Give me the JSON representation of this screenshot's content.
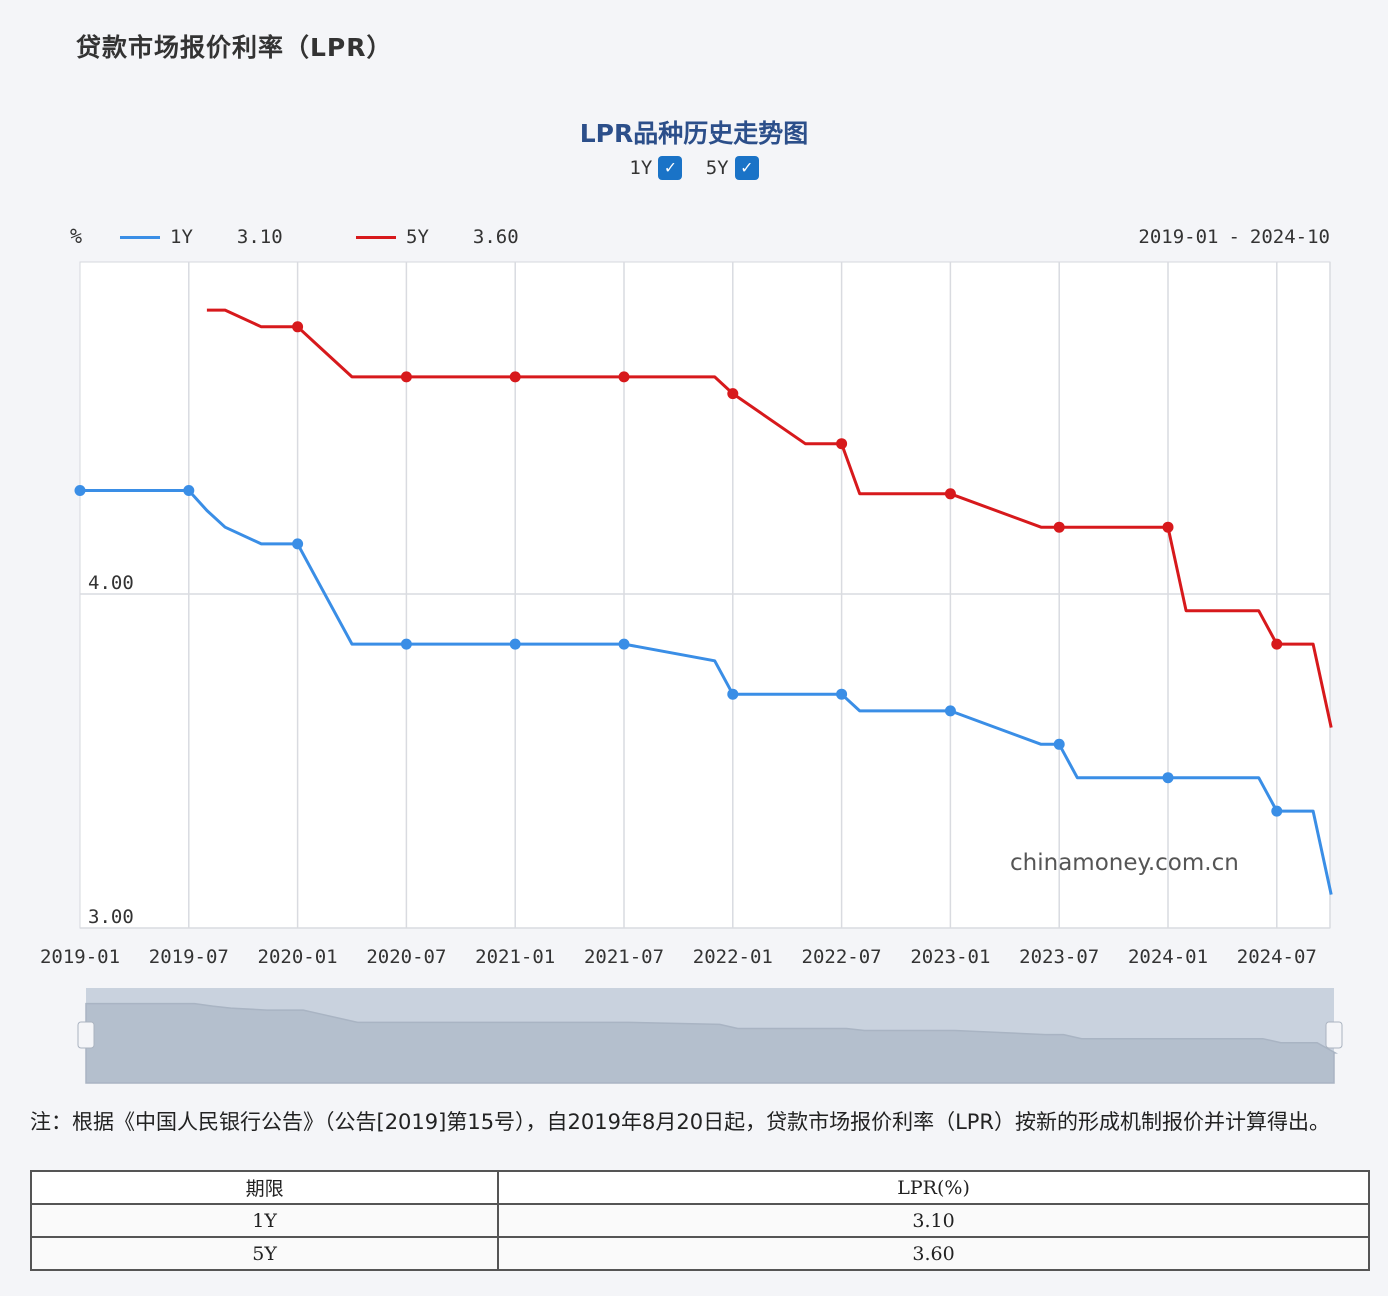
{
  "page_title": "贷款市场报价利率（LPR）",
  "chart_title": "LPR品种历史走势图",
  "toggles": [
    {
      "label": "1Y",
      "checked": true
    },
    {
      "label": "5Y",
      "checked": true
    }
  ],
  "checkmark": "✓",
  "legend": [
    {
      "name": "1Y",
      "value": "3.10",
      "color": "#3a8ee6"
    },
    {
      "name": "5Y",
      "value": "3.60",
      "color": "#d7191c"
    }
  ],
  "unit_label": "%",
  "date_range": {
    "start": "2019-01",
    "sep": "-",
    "end": "2024-10"
  },
  "watermark": "chinamoney.com.cn",
  "chart_data": {
    "type": "line",
    "x_ticks": [
      "2019-01",
      "2019-07",
      "2020-01",
      "2020-07",
      "2021-01",
      "2021-07",
      "2022-01",
      "2022-07",
      "2023-01",
      "2023-07",
      "2024-01",
      "2024-07"
    ],
    "y_ticks": [
      "4.00",
      "3.00"
    ],
    "ylim": [
      3.0,
      5.0
    ],
    "grid": true,
    "series": [
      {
        "name": "1Y",
        "color": "#3a8ee6",
        "points": [
          [
            "2019-01",
            4.31
          ],
          [
            "2019-07",
            4.31
          ],
          [
            "2019-08",
            4.25
          ],
          [
            "2019-09",
            4.2
          ],
          [
            "2019-11",
            4.15
          ],
          [
            "2020-01",
            4.15
          ],
          [
            "2020-02",
            4.05
          ],
          [
            "2020-04",
            3.85
          ],
          [
            "2020-07",
            3.85
          ],
          [
            "2021-01",
            3.85
          ],
          [
            "2021-07",
            3.85
          ],
          [
            "2021-12",
            3.8
          ],
          [
            "2022-01",
            3.7
          ],
          [
            "2022-07",
            3.7
          ],
          [
            "2022-08",
            3.65
          ],
          [
            "2023-01",
            3.65
          ],
          [
            "2023-06",
            3.55
          ],
          [
            "2023-07",
            3.55
          ],
          [
            "2023-08",
            3.45
          ],
          [
            "2024-01",
            3.45
          ],
          [
            "2024-06",
            3.45
          ],
          [
            "2024-07",
            3.35
          ],
          [
            "2024-09",
            3.35
          ],
          [
            "2024-10",
            3.1
          ]
        ],
        "markers": [
          "2019-01",
          "2019-07",
          "2020-01",
          "2020-07",
          "2021-01",
          "2021-07",
          "2022-01",
          "2022-07",
          "2023-01",
          "2023-07",
          "2024-01",
          "2024-07"
        ]
      },
      {
        "name": "5Y",
        "color": "#d7191c",
        "points": [
          [
            "2019-08",
            4.85
          ],
          [
            "2019-09",
            4.85
          ],
          [
            "2019-11",
            4.8
          ],
          [
            "2020-01",
            4.8
          ],
          [
            "2020-02",
            4.75
          ],
          [
            "2020-04",
            4.65
          ],
          [
            "2020-07",
            4.65
          ],
          [
            "2021-01",
            4.65
          ],
          [
            "2021-07",
            4.65
          ],
          [
            "2021-12",
            4.65
          ],
          [
            "2022-01",
            4.6
          ],
          [
            "2022-05",
            4.45
          ],
          [
            "2022-07",
            4.45
          ],
          [
            "2022-08",
            4.3
          ],
          [
            "2023-01",
            4.3
          ],
          [
            "2023-06",
            4.2
          ],
          [
            "2023-07",
            4.2
          ],
          [
            "2024-01",
            4.2
          ],
          [
            "2024-02",
            3.95
          ],
          [
            "2024-06",
            3.95
          ],
          [
            "2024-07",
            3.85
          ],
          [
            "2024-09",
            3.85
          ],
          [
            "2024-10",
            3.6
          ]
        ],
        "markers": [
          "2020-01",
          "2020-07",
          "2021-01",
          "2021-07",
          "2022-01",
          "2022-07",
          "2023-01",
          "2023-07",
          "2024-01",
          "2024-07"
        ]
      }
    ]
  },
  "note": "注：根据《中国人民银行公告》（公告[2019]第15号），自2019年8月20日起，贷款市场报价利率（LPR）按新的形成机制报价并计算得出。",
  "table": {
    "headers": [
      "期限",
      "LPR(%)"
    ],
    "rows": [
      [
        "1Y",
        "3.10"
      ],
      [
        "5Y",
        "3.60"
      ]
    ]
  }
}
